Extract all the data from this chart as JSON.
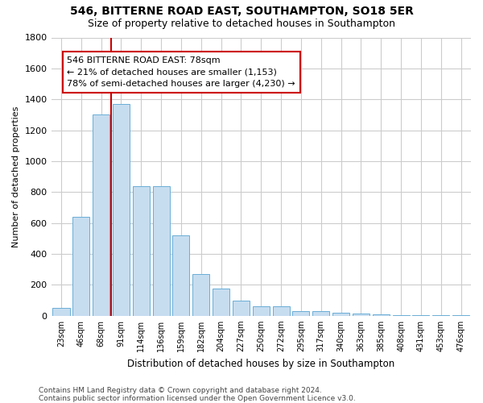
{
  "title_line1": "546, BITTERNE ROAD EAST, SOUTHAMPTON, SO18 5ER",
  "title_line2": "Size of property relative to detached houses in Southampton",
  "xlabel": "Distribution of detached houses by size in Southampton",
  "ylabel": "Number of detached properties",
  "categories": [
    "23sqm",
    "46sqm",
    "68sqm",
    "91sqm",
    "114sqm",
    "136sqm",
    "159sqm",
    "182sqm",
    "204sqm",
    "227sqm",
    "250sqm",
    "272sqm",
    "295sqm",
    "317sqm",
    "340sqm",
    "363sqm",
    "385sqm",
    "408sqm",
    "431sqm",
    "453sqm",
    "476sqm"
  ],
  "values": [
    50,
    640,
    1300,
    1370,
    840,
    840,
    520,
    270,
    175,
    100,
    60,
    60,
    30,
    30,
    20,
    15,
    10,
    5,
    5,
    3,
    3
  ],
  "bar_color": "#c6ddf0",
  "bar_edge_color": "#6aaed6",
  "annotation_text_line1": "546 BITTERNE ROAD EAST: 78sqm",
  "annotation_text_line2": "← 21% of detached houses are smaller (1,153)",
  "annotation_text_line3": "78% of semi-detached houses are larger (4,230) →",
  "annotation_box_color": "#ffffff",
  "annotation_border_color": "#cc0000",
  "red_line_color": "#cc0000",
  "grid_color": "#cccccc",
  "ylim": [
    0,
    1800
  ],
  "yticks": [
    0,
    200,
    400,
    600,
    800,
    1000,
    1200,
    1400,
    1600,
    1800
  ],
  "footnote_line1": "Contains HM Land Registry data © Crown copyright and database right 2024.",
  "footnote_line2": "Contains public sector information licensed under the Open Government Licence v3.0.",
  "bg_color": "#ffffff",
  "title_fontsize": 10,
  "subtitle_fontsize": 9,
  "annotation_fontsize": 8,
  "footnote_fontsize": 6.5
}
